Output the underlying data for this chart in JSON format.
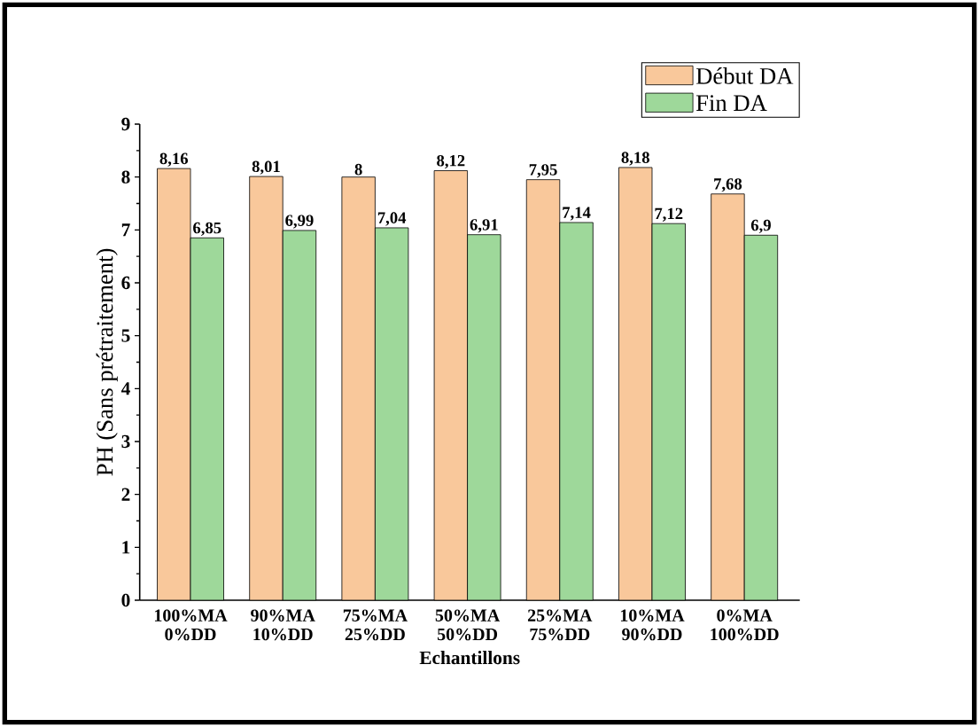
{
  "chart_data": {
    "type": "bar",
    "xlabel": "Echantillons",
    "ylabel": "PH (Sans prétraitement)",
    "categories": [
      "100%MA 0%DD",
      "90%MA 10%DD",
      "75%MA 25%DD",
      "50%MA 50%DD",
      "25%MA 75%DD",
      "10%MA 90%DD",
      "0%MA 100%DD"
    ],
    "series": [
      {
        "name": "Début DA",
        "color": "#f9c89b",
        "values": [
          8.16,
          8.01,
          8,
          8.12,
          7.95,
          8.18,
          7.68
        ],
        "value_labels": [
          "8,16",
          "8,01",
          "8",
          "8,12",
          "7,95",
          "8,18",
          "7,68"
        ]
      },
      {
        "name": "Fin DA",
        "color": "#9ed89a",
        "values": [
          6.85,
          6.99,
          7.04,
          6.91,
          7.14,
          7.12,
          6.9
        ],
        "value_labels": [
          "6,85",
          "6,99",
          "7,04",
          "6,91",
          "7,14",
          "7,12",
          "6,9"
        ]
      }
    ],
    "ylim": [
      0,
      9
    ],
    "yticks": [
      0,
      1,
      2,
      3,
      4,
      5,
      6,
      7,
      8,
      9
    ],
    "legend": "top right",
    "grid": false
  }
}
